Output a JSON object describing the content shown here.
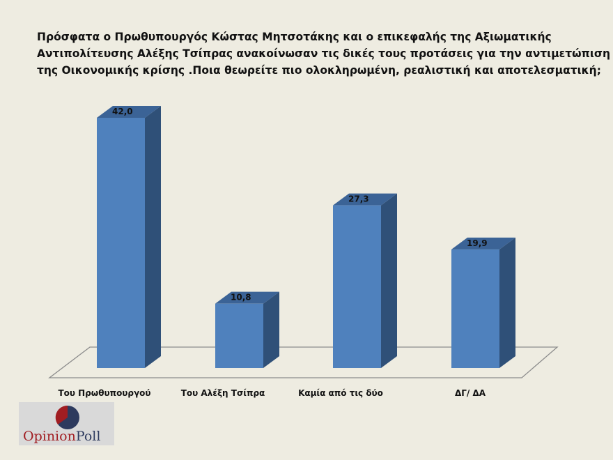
{
  "title": {
    "lines": [
      "Πρόσφατα ο Πρωθυπουργός Κώστας Μητσοτάκης και ο  επικεφαλής της Αξιωματικής",
      "Αντιπολίτευσης Αλέξης Τσίπρας ανακοίνωσαν τις δικές τους προτάσεις για την αντιμετώπιση",
      "της Οικονομικής κρίσης .Ποια θεωρείτε πιο ολοκληρωμένη, ρεαλιστική και αποτελεσματική;"
    ]
  },
  "chart_data": {
    "type": "bar",
    "style": "3d-column",
    "title": "Πρόσφατα ο Πρωθυπουργός Κώστας Μητσοτάκης και ο  επικεφαλής της Αξιωματικής Αντιπολίτευσης Αλέξης Τσίπρας ανακοίνωσαν τις δικές τους προτάσεις για την αντιμετώπιση της Οικονομικής κρίσης .Ποια θεωρείτε πιο ολοκληρωμένη, ρεαλιστική και αποτελεσματική;",
    "categories": [
      "Του Πρωθυπουργού",
      "Του Αλέξη Τσίπρα",
      "Καμία από τις δύο",
      "ΔΓ/ ΔΑ"
    ],
    "values": [
      42.0,
      10.8,
      27.3,
      19.9
    ],
    "value_labels": [
      "42,0",
      "10,8",
      "27,3",
      "19,9"
    ],
    "xlabel": "",
    "ylabel": "",
    "grid": false,
    "legend": null,
    "colors": {
      "front": "#4f81bd",
      "top": "#3b6396",
      "side": "#2f5078"
    }
  },
  "logo": {
    "part1": "Opinion",
    "part2": "Poll",
    "colors": {
      "red": "#a11d22",
      "navy": "#2d3a5e"
    }
  }
}
